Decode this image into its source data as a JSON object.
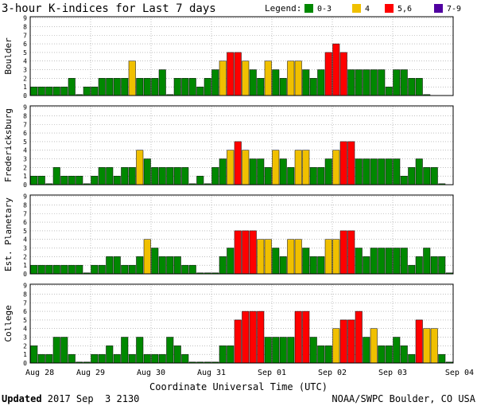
{
  "chart_data": {
    "type": "bar",
    "title": "3-hour K-indices for Last 7 days",
    "legend_title": "Legend:",
    "legend": [
      {
        "label": "0-3",
        "color": "#008800"
      },
      {
        "label": "4",
        "color": "#f0c000"
      },
      {
        "label": "5,6",
        "color": "#ff0000"
      },
      {
        "label": "7-9",
        "color": "#5000a0"
      }
    ],
    "xlabel": "Coordinate Universal Time (UTC)",
    "x_ticks": [
      "Aug 28",
      "Aug 29",
      "Aug 30",
      "Aug 31",
      "Sep 01",
      "Sep 02",
      "Sep 03",
      "Sep 04"
    ],
    "ylim": [
      0,
      9
    ],
    "y_ticks": [
      0,
      1,
      2,
      3,
      4,
      5,
      6,
      7,
      8,
      9
    ],
    "grid": true,
    "panels": [
      {
        "name": "Boulder",
        "values": [
          1,
          1,
          1,
          1,
          1,
          2,
          0,
          1,
          1,
          2,
          2,
          2,
          2,
          4,
          2,
          2,
          2,
          3,
          0,
          2,
          2,
          2,
          1,
          2,
          3,
          4,
          5,
          5,
          4,
          3,
          2,
          4,
          3,
          2,
          4,
          4,
          3,
          2,
          3,
          5,
          6,
          5,
          3,
          3,
          3,
          3,
          3,
          1,
          3,
          3,
          2,
          2,
          0
        ]
      },
      {
        "name": "Fredericksburg",
        "values": [
          1,
          1,
          0,
          2,
          1,
          1,
          1,
          0,
          1,
          2,
          2,
          1,
          2,
          2,
          4,
          3,
          2,
          2,
          2,
          2,
          2,
          0,
          1,
          0,
          2,
          3,
          4,
          5,
          4,
          3,
          3,
          2,
          4,
          3,
          2,
          4,
          4,
          2,
          2,
          3,
          4,
          5,
          5,
          3,
          3,
          3,
          3,
          3,
          3,
          1,
          2,
          3,
          2,
          2,
          0
        ]
      },
      {
        "name": "Est. Planetary",
        "values": [
          1,
          1,
          1,
          1,
          1,
          1,
          1,
          0,
          1,
          1,
          2,
          2,
          1,
          1,
          2,
          4,
          3,
          2,
          2,
          2,
          1,
          1,
          0,
          0,
          0,
          2,
          3,
          5,
          5,
          5,
          4,
          4,
          3,
          2,
          4,
          4,
          3,
          2,
          2,
          4,
          4,
          5,
          5,
          3,
          2,
          3,
          3,
          3,
          3,
          3,
          1,
          2,
          3,
          2,
          2,
          0
        ]
      },
      {
        "name": "College",
        "values": [
          2,
          1,
          1,
          3,
          3,
          1,
          0,
          0,
          1,
          1,
          2,
          1,
          3,
          1,
          3,
          1,
          1,
          1,
          3,
          2,
          1,
          0,
          0,
          0,
          0,
          2,
          2,
          5,
          6,
          6,
          6,
          3,
          3,
          3,
          3,
          6,
          6,
          3,
          2,
          2,
          4,
          5,
          5,
          6,
          3,
          4,
          2,
          2,
          3,
          2,
          1,
          5,
          4,
          4,
          1,
          0
        ]
      }
    ]
  },
  "footer": {
    "updated_label": "Updated",
    "updated_value": " 2017 Sep  3 2130",
    "credit": "NOAA/SWPC Boulder, CO USA"
  }
}
